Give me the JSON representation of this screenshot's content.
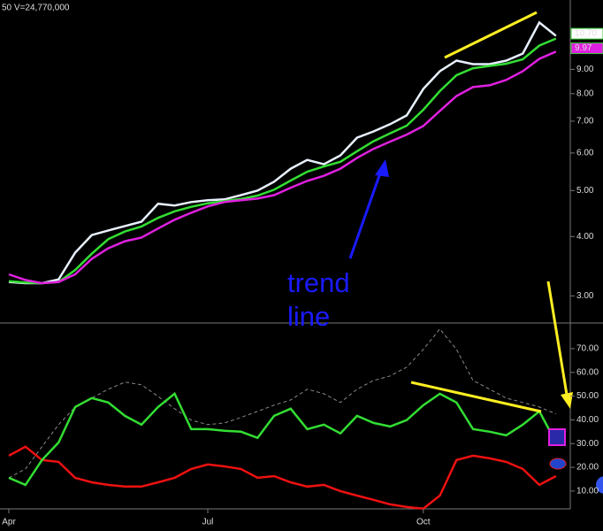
{
  "chart_data": [
    {
      "type": "line",
      "subtitle": "50  V=24,770,000",
      "log_scale": true,
      "ylim": [
        2.63,
        12.6
      ],
      "yticks": [
        {
          "value": 3,
          "label": "3.00"
        },
        {
          "value": 4,
          "label": "4.00"
        },
        {
          "value": 5,
          "label": "5.00"
        },
        {
          "value": 6,
          "label": "6.00"
        },
        {
          "value": 7,
          "label": "7.00"
        },
        {
          "value": 8,
          "label": "8.00"
        },
        {
          "value": 9,
          "label": "9.00"
        }
      ],
      "categories": [
        "Apr",
        null,
        null,
        null,
        null,
        null,
        null,
        null,
        null,
        null,
        null,
        null,
        "Jul",
        null,
        null,
        null,
        null,
        null,
        null,
        null,
        null,
        null,
        null,
        null,
        null,
        "Oct",
        null,
        null,
        null,
        null,
        null,
        null,
        null,
        null
      ],
      "series": [
        {
          "color": "#e8f0ff",
          "values": [
            3.21,
            3.19,
            3.19,
            3.25,
            3.7,
            4.03,
            4.12,
            4.21,
            4.3,
            4.69,
            4.65,
            4.73,
            4.77,
            4.79,
            4.89,
            5.0,
            5.22,
            5.56,
            5.8,
            5.68,
            5.93,
            6.46,
            6.66,
            6.9,
            7.2,
            8.19,
            8.92,
            9.39,
            9.23,
            9.23,
            9.39,
            9.72,
            11.3,
            10.59
          ]
        },
        {
          "color": "#33dd33",
          "values": [
            3.22,
            3.2,
            3.19,
            3.21,
            3.4,
            3.68,
            3.95,
            4.1,
            4.2,
            4.38,
            4.52,
            4.62,
            4.7,
            4.75,
            4.8,
            4.88,
            5.02,
            5.25,
            5.48,
            5.62,
            5.75,
            6.05,
            6.35,
            6.6,
            6.85,
            7.4,
            8.1,
            8.75,
            9.05,
            9.15,
            9.25,
            9.45,
            10.1,
            10.45
          ]
        },
        {
          "color": "#e020e0",
          "values": [
            3.33,
            3.24,
            3.19,
            3.21,
            3.33,
            3.59,
            3.78,
            3.91,
            3.98,
            4.16,
            4.34,
            4.49,
            4.63,
            4.73,
            4.77,
            4.81,
            4.89,
            5.07,
            5.24,
            5.37,
            5.56,
            5.86,
            6.12,
            6.34,
            6.56,
            6.84,
            7.36,
            7.91,
            8.26,
            8.33,
            8.55,
            8.92,
            9.47,
            9.81
          ]
        }
      ],
      "price_labels": [
        {
          "value": 10.7,
          "label": "10.70",
          "color": "#ffffff"
        },
        {
          "value": 9.97,
          "label": "9.97",
          "color": "#e020e0"
        }
      ],
      "annotation": [
        "trend",
        "line"
      ]
    },
    {
      "type": "line",
      "ylim": [
        2.5,
        80.8
      ],
      "yticks": [
        {
          "value": 10,
          "label": "10.00"
        },
        {
          "value": 20,
          "label": "20.00"
        },
        {
          "value": 30,
          "label": "30.00"
        },
        {
          "value": 40,
          "label": "40.00"
        },
        {
          "value": 50,
          "label": "50.00"
        },
        {
          "value": 60,
          "label": "60.00"
        },
        {
          "value": 70,
          "label": "70.00"
        }
      ],
      "series": [
        {
          "color": "#888888",
          "dashed": true,
          "values": [
            15.6,
            19.3,
            28.7,
            38.0,
            45.4,
            49.2,
            52.9,
            55.9,
            54.8,
            49.9,
            44.7,
            39.9,
            38.0,
            38.7,
            41.0,
            43.6,
            46.2,
            48.4,
            52.9,
            51.0,
            47.3,
            52.9,
            56.6,
            58.5,
            62.2,
            69.7,
            78.3,
            69.7,
            56.6,
            52.9,
            49.2,
            47.3,
            45.4,
            42.5
          ]
        },
        {
          "color": "#ee1111",
          "values": [
            24.9,
            28.7,
            23.1,
            22.3,
            15.6,
            13.7,
            12.6,
            11.9,
            11.9,
            13.7,
            15.6,
            19.3,
            21.2,
            20.4,
            19.3,
            15.6,
            16.3,
            13.7,
            11.9,
            12.6,
            10.0,
            8.1,
            6.3,
            4.4,
            3.3,
            2.6,
            8.1,
            23.1,
            24.9,
            23.8,
            22.3,
            19.3,
            12.6,
            16.3
          ]
        },
        {
          "color": "#33dd33",
          "values": [
            15.6,
            12.6,
            23.1,
            30.5,
            45.4,
            49.2,
            47.3,
            41.7,
            38.0,
            45.4,
            51.0,
            36.1,
            36.1,
            35.4,
            35.0,
            32.4,
            41.7,
            44.7,
            36.1,
            38.0,
            34.3,
            41.7,
            38.7,
            37.2,
            39.9,
            46.2,
            51.0,
            47.3,
            36.1,
            35.0,
            33.5,
            38.0,
            43.6,
            30.5
          ]
        }
      ]
    }
  ]
}
